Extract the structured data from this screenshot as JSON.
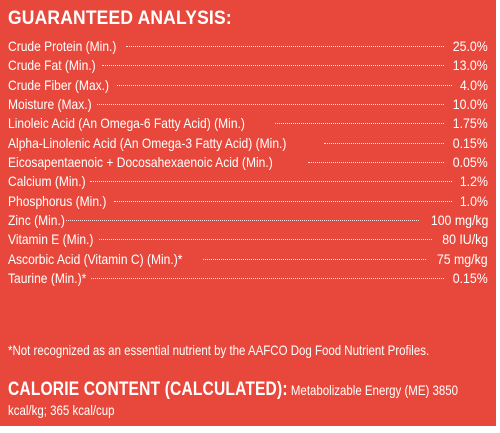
{
  "colors": {
    "background": "#e8483b",
    "text": "#ffffff"
  },
  "heading": "GUARANTEED ANALYSIS:",
  "rows": [
    {
      "name": "Crude Protein (Min.)",
      "value": "25.0%"
    },
    {
      "name": "Crude Fat (Min.)",
      "value": "13.0%"
    },
    {
      "name": "Crude Fiber (Max.)",
      "value": "4.0%"
    },
    {
      "name": "Moisture (Max.)",
      "value": "10.0%"
    },
    {
      "name": "Linoleic Acid (An Omega-6 Fatty Acid) (Min.)",
      "value": "1.75%"
    },
    {
      "name": "Alpha-Linolenic Acid (An Omega-3 Fatty Acid) (Min.)",
      "value": "0.15%"
    },
    {
      "name": "Eicosapentaenoic + Docosahexaenoic Acid (Min.)",
      "value": "0.05%"
    },
    {
      "name": "Calcium (Min.)",
      "value": "1.2%"
    },
    {
      "name": "Phosphorus (Min.)",
      "value": "1.0%"
    },
    {
      "name": "Zinc (Min.)",
      "value": "100 mg/kg"
    },
    {
      "name": "Vitamin E (Min.)",
      "value": "80 IU/kg"
    },
    {
      "name": "Ascorbic Acid (Vitamin C) (Min.)*",
      "value": "75 mg/kg"
    },
    {
      "name": "Taurine (Min.)*",
      "value": "0.15%"
    }
  ],
  "footnote": "*Not recognized as an essential nutrient by the AAFCO Dog Food Nutrient Profiles.",
  "calorie": {
    "label": "CALORIE CONTENT (CALCULATED):",
    "text": "Metabolizable Energy (ME) 3850 kcal/kg; 365 kcal/cup"
  }
}
